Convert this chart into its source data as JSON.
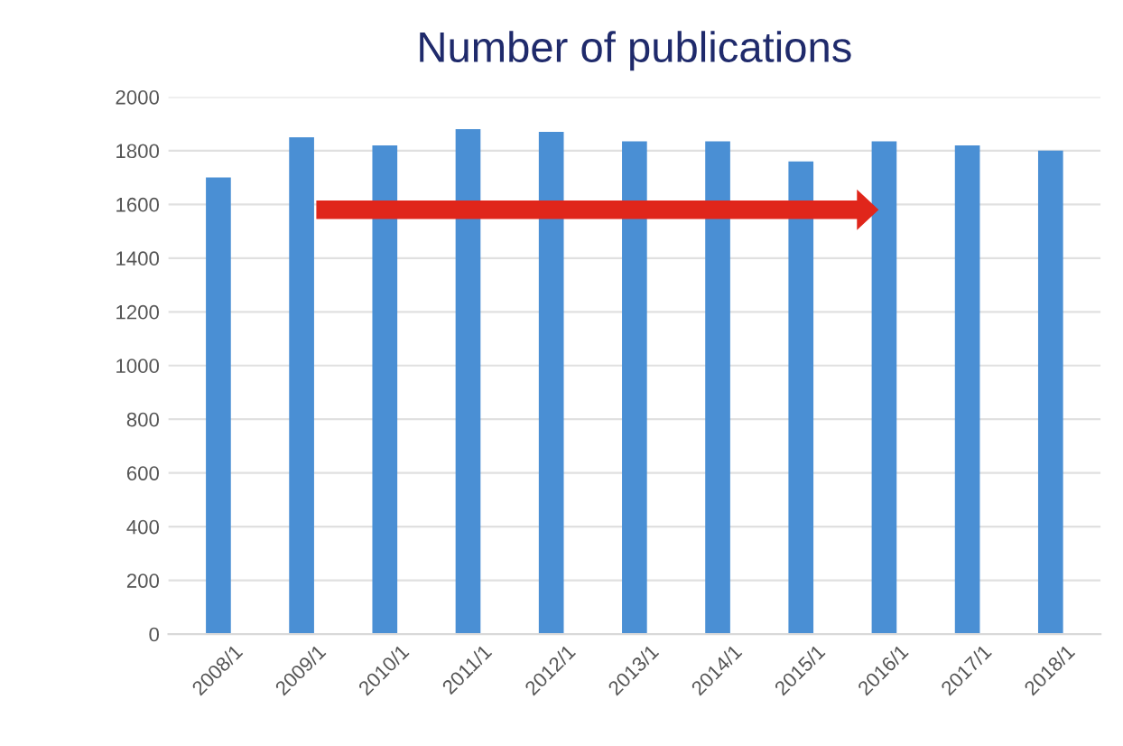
{
  "chart_data": {
    "type": "bar",
    "title": "Number of publications",
    "categories": [
      "2008/1",
      "2009/1",
      "2010/1",
      "2011/1",
      "2012/1",
      "2013/1",
      "2014/1",
      "2015/1",
      "2016/1",
      "2017/1",
      "2018/1"
    ],
    "values": [
      1700,
      1850,
      1820,
      1880,
      1870,
      1835,
      1835,
      1760,
      1835,
      1820,
      1800
    ],
    "color": "#4a8fd4",
    "ylim": [
      0,
      2000
    ],
    "yticks": [
      0,
      200,
      400,
      600,
      800,
      1000,
      1200,
      1400,
      1600,
      1800,
      2000
    ],
    "grid": "y"
  }
}
